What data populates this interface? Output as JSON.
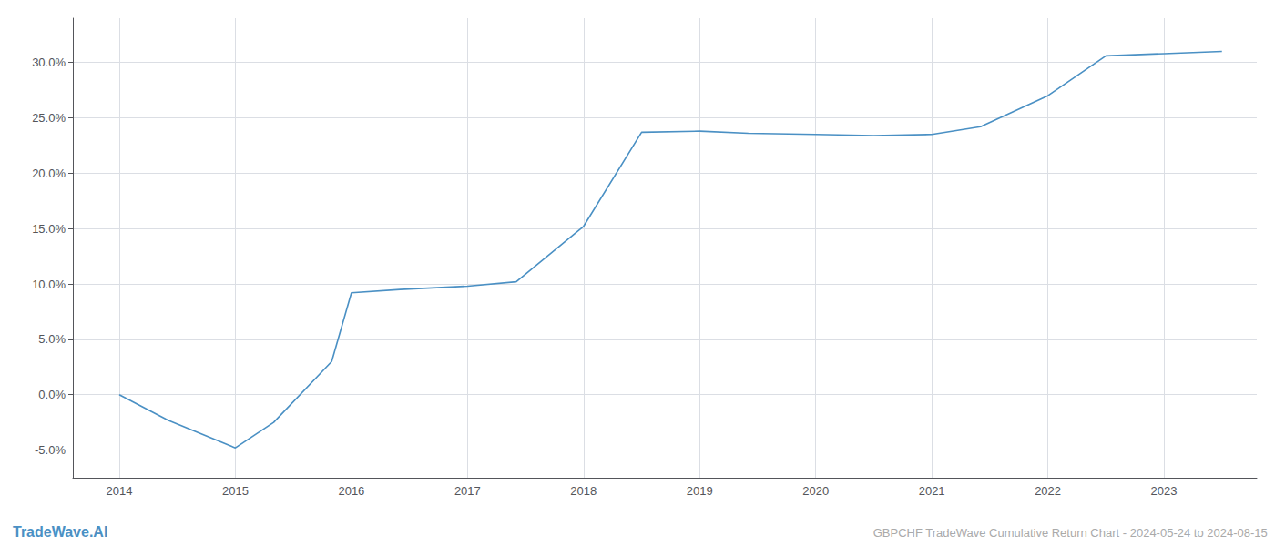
{
  "chart_data": {
    "type": "line",
    "x": [
      2014.0,
      2014.42,
      2015.0,
      2015.33,
      2015.83,
      2016.0,
      2016.42,
      2017.0,
      2017.42,
      2018.0,
      2018.5,
      2019.0,
      2019.42,
      2020.0,
      2020.5,
      2021.0,
      2021.42,
      2022.0,
      2022.5,
      2023.0,
      2023.5
    ],
    "values": [
      0.0,
      -2.3,
      -4.8,
      -2.5,
      3.0,
      9.2,
      9.5,
      9.8,
      10.2,
      15.2,
      23.7,
      23.8,
      23.6,
      23.5,
      23.4,
      23.5,
      24.2,
      27.0,
      30.6,
      30.8,
      31.0
    ],
    "color": "#4a90c4",
    "xlim": [
      2013.6,
      2023.8
    ],
    "xticks": [
      2014,
      2015,
      2016,
      2017,
      2018,
      2019,
      2020,
      2021,
      2022,
      2023
    ],
    "ylim": [
      -7.5,
      34.0
    ],
    "yticks": [
      {
        "value": -5.0,
        "label": "-5.0%"
      },
      {
        "value": 0.0,
        "label": "0.0%"
      },
      {
        "value": 5.0,
        "label": "5.0%"
      },
      {
        "value": 10.0,
        "label": "10.0%"
      },
      {
        "value": 15.0,
        "label": "15.0%"
      },
      {
        "value": 20.0,
        "label": "20.0%"
      },
      {
        "value": 25.0,
        "label": "25.0%"
      },
      {
        "value": 30.0,
        "label": "30.0%"
      }
    ],
    "grid": true,
    "annotations": [
      {
        "text": "TradeWave.AI",
        "color": "#4a90c4"
      },
      {
        "text": "GBPCHF TradeWave Cumulative Return Chart - 2024-05-24 to 2024-08-15",
        "color": "#aaaaaa"
      }
    ]
  }
}
